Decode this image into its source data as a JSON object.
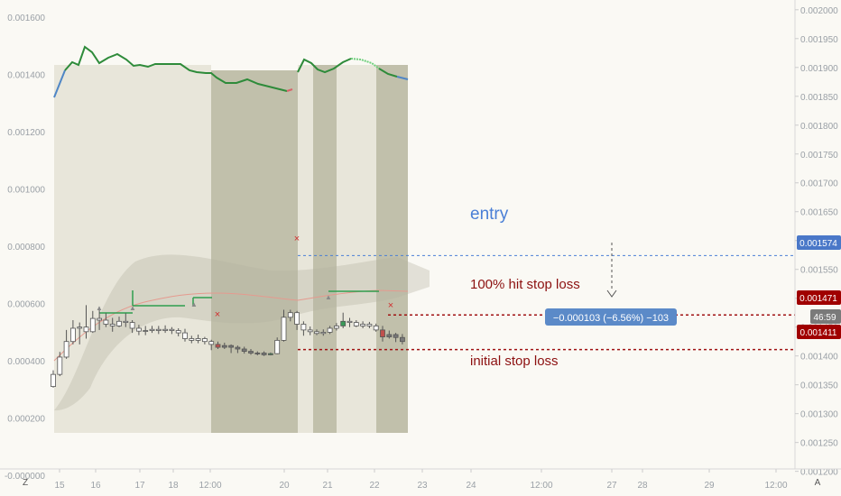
{
  "chart_data": {
    "type": "candlestick",
    "left_axis": {
      "ticks": [
        "0.001600",
        "0.001400",
        "0.001200",
        "0.001000",
        "0.000800",
        "0.000600",
        "0.000400",
        "0.000200",
        "-0.000000"
      ],
      "range": [
        -1e-05,
        0.00166
      ]
    },
    "right_axis": {
      "ticks": [
        "0.002000",
        "0.001950",
        "0.001900",
        "0.001850",
        "0.001800",
        "0.001750",
        "0.001700",
        "0.001650",
        "0.001600",
        "0.001550",
        "0.001500",
        "0.001450",
        "0.001400",
        "0.001350",
        "0.001300",
        "0.001250",
        "0.001200"
      ],
      "range": [
        0.0011885,
        0.0020169
      ]
    },
    "x_axis": {
      "ticks": [
        "15",
        "16",
        "17",
        "18",
        "12:00",
        "20",
        "21",
        "22",
        "23",
        "24",
        "12:00",
        "27",
        "28",
        "29",
        "12:00"
      ]
    },
    "candles": [
      [
        0.001347,
        0.001368,
        0.001345,
        0.001375
      ],
      [
        0.001368,
        0.001398,
        0.001365,
        0.001407
      ],
      [
        0.001398,
        0.001425,
        0.001395,
        0.001445
      ],
      [
        0.001425,
        0.001448,
        0.00142,
        0.001462
      ],
      [
        0.001448,
        0.00145,
        0.00142,
        0.001458
      ],
      [
        0.00145,
        0.001442,
        0.00143,
        0.001488
      ],
      [
        0.001442,
        0.001465,
        0.00144,
        0.001478
      ],
      [
        0.001465,
        0.001462,
        0.001445,
        0.001485
      ],
      [
        0.001462,
        0.001455,
        0.00145,
        0.001474
      ],
      [
        0.001455,
        0.001452,
        0.001442,
        0.001466
      ],
      [
        0.001452,
        0.00146,
        0.00145,
        0.001468
      ],
      [
        0.00146,
        0.001458,
        0.00145,
        0.001474
      ],
      [
        0.001458,
        0.001448,
        0.00144,
        0.001462
      ],
      [
        0.001448,
        0.001443,
        0.001436,
        0.001454
      ],
      [
        0.001443,
        0.001444,
        0.001436,
        0.001452
      ],
      [
        0.001444,
        0.001446,
        0.00144,
        0.001452
      ],
      [
        0.001446,
        0.001444,
        0.001438,
        0.001452
      ],
      [
        0.001444,
        0.001446,
        0.00144,
        0.001453
      ],
      [
        0.001446,
        0.001444,
        0.001438,
        0.00145
      ],
      [
        0.001444,
        0.00144,
        0.001434,
        0.001448
      ],
      [
        0.00144,
        0.00143,
        0.001425,
        0.001447
      ],
      [
        0.00143,
        0.001427,
        0.001422,
        0.001435
      ],
      [
        0.001427,
        0.00143,
        0.001422,
        0.001437
      ],
      [
        0.00143,
        0.001425,
        0.00142,
        0.001433
      ],
      [
        0.001425,
        0.00142,
        0.00141,
        0.001428
      ],
      [
        0.00142,
        0.001415,
        0.001412,
        0.001425
      ],
      [
        0.001415,
        0.001418,
        0.001412,
        0.001423
      ],
      [
        0.001418,
        0.001415,
        0.001405,
        0.00142
      ],
      [
        0.001415,
        0.001412,
        0.001405,
        0.001418
      ],
      [
        0.001412,
        0.001408,
        0.001404,
        0.001416
      ],
      [
        0.001408,
        0.001405,
        0.001402,
        0.001412
      ],
      [
        0.001405,
        0.001404,
        0.001401,
        0.001408
      ],
      [
        0.001405,
        0.001402,
        0.0014,
        0.001408
      ],
      [
        0.001402,
        0.001404,
        0.001401,
        0.001406
      ],
      [
        0.001404,
        0.001427,
        0.001403,
        0.001432
      ],
      [
        0.001427,
        0.001467,
        0.001425,
        0.00148
      ],
      [
        0.001467,
        0.001475,
        0.00146,
        0.00148
      ],
      [
        0.001475,
        0.001455,
        0.001445,
        0.001478
      ],
      [
        0.001455,
        0.001445,
        0.001435,
        0.00146
      ],
      [
        0.001445,
        0.001442,
        0.001436,
        0.001451
      ],
      [
        0.001442,
        0.001439,
        0.001436,
        0.001446
      ],
      [
        0.001439,
        0.001441,
        0.001435,
        0.001446
      ],
      [
        0.001441,
        0.001448,
        0.001438,
        0.001452
      ],
      [
        0.001448,
        0.001452,
        0.001444,
        0.001457
      ],
      [
        0.001452,
        0.00146,
        0.001448,
        0.001475
      ],
      [
        0.00146,
        0.001458,
        0.00145,
        0.001466
      ],
      [
        0.001458,
        0.001452,
        0.00145,
        0.001462
      ],
      [
        0.001452,
        0.001455,
        0.001448,
        0.00146
      ],
      [
        0.001455,
        0.001452,
        0.001448,
        0.001459
      ],
      [
        0.001452,
        0.001445,
        0.001442,
        0.001456
      ],
      [
        0.001445,
        0.001433,
        0.001425,
        0.001452
      ],
      [
        0.001433,
        0.001437,
        0.00143,
        0.001444
      ],
      [
        0.001437,
        0.001432,
        0.001424,
        0.00144
      ],
      [
        0.001432,
        0.001425,
        0.00142,
        0.001438
      ]
    ],
    "levels": {
      "entry": 0.001574,
      "hit_stop_loss": 0.001471,
      "initial_stop_loss": 0.001411
    },
    "annotations": {
      "entry": "entry",
      "hit": "100% hit stop loss",
      "initial": "initial stop loss"
    },
    "price_labels": {
      "entry": "0.001574",
      "hit": "0.001471",
      "initial": "0.001411",
      "countdown": "46:59"
    },
    "measure_label": "−0.000103 (−6.56%) −103",
    "corner_labels": {
      "left": "Z",
      "right": "A"
    },
    "marks": {
      "cross": "×",
      "triangle": "▲"
    },
    "colors": {
      "up_body": "#ffffff",
      "wick": "#555555",
      "dark_candle": "#7a7a7a",
      "red_candle": "#c0504d",
      "green_candle": "#3a9a58",
      "entry_line": "#4a7fd6",
      "stop_line": "#a01313",
      "label_entry": "#4a78c8",
      "label_stop": "#a00000",
      "measure_box": "#5b8ac8",
      "pane_light": "#e8e6da",
      "pane_dark": "#c1c0ab",
      "top_line_green": "#2e8b3a",
      "top_line_blue": "#4f86c6",
      "hist_green": "#2f9e4f"
    }
  }
}
